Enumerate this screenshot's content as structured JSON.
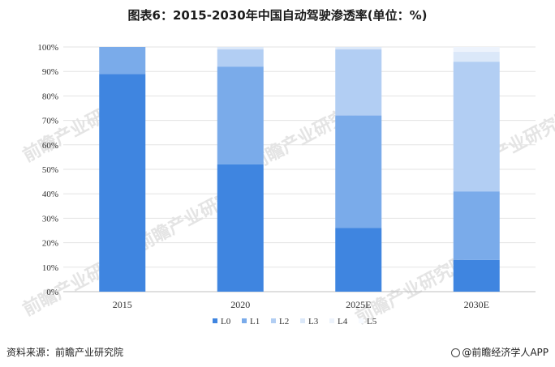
{
  "title": "图表6：2015-2030年中国自动驾驶渗透率(单位：%)",
  "footer": {
    "source": "资料来源：前瞻产业研究院",
    "brand": "@前瞻经济学人APP"
  },
  "watermark": "前瞻产业研究院",
  "chart_data": {
    "type": "bar",
    "stacked": true,
    "categories": [
      "2015",
      "2020",
      "2025E",
      "2030E"
    ],
    "ylim": [
      0,
      100
    ],
    "yticks": [
      "0%",
      "10%",
      "20%",
      "30%",
      "40%",
      "50%",
      "60%",
      "70%",
      "80%",
      "90%",
      "100%"
    ],
    "grid": true,
    "legend_position": "bottom",
    "series": [
      {
        "name": "L0",
        "color": "#3f85e0",
        "values": [
          89,
          52,
          26,
          13
        ]
      },
      {
        "name": "L1",
        "color": "#7aabea",
        "values": [
          11,
          40,
          46,
          28
        ]
      },
      {
        "name": "L2",
        "color": "#b2cef3",
        "values": [
          0,
          7,
          27,
          53
        ]
      },
      {
        "name": "L3",
        "color": "#dbe8f9",
        "values": [
          0,
          1,
          1,
          4
        ]
      },
      {
        "name": "L4",
        "color": "#edf3fc",
        "values": [
          0,
          0,
          0,
          2
        ]
      },
      {
        "name": "L5",
        "color": "#f7faff",
        "values": [
          0,
          0,
          0,
          0
        ]
      }
    ]
  }
}
